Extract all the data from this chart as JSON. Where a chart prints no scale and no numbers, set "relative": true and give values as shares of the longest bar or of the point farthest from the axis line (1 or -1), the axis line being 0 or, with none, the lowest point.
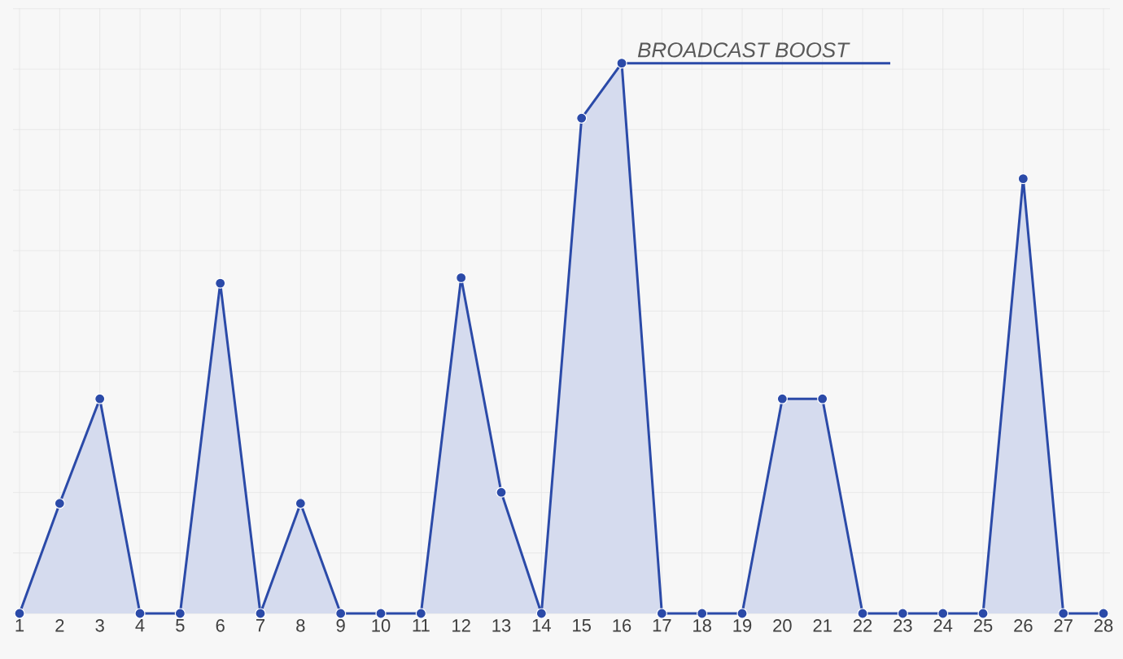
{
  "chart_data": {
    "type": "area",
    "relative": true,
    "categories": [
      "1",
      "2",
      "3",
      "4",
      "5",
      "6",
      "7",
      "8",
      "9",
      "10",
      "11",
      "12",
      "13",
      "14",
      "15",
      "16",
      "17",
      "18",
      "19",
      "20",
      "21",
      "22",
      "23",
      "24",
      "25",
      "26",
      "27",
      "28"
    ],
    "values": [
      0,
      0.2,
      0.39,
      0,
      0,
      0.6,
      0,
      0.2,
      0,
      0,
      0,
      0.61,
      0.22,
      0,
      0.9,
      1,
      0,
      0,
      0,
      0.39,
      0.39,
      0,
      0,
      0,
      0,
      0.79,
      0,
      0
    ],
    "color": "#2b4aa8",
    "marker": "circle",
    "grid": true,
    "annotations": [
      {
        "text": "BROADCAST BOOST",
        "x": "16",
        "y": 1
      }
    ]
  }
}
